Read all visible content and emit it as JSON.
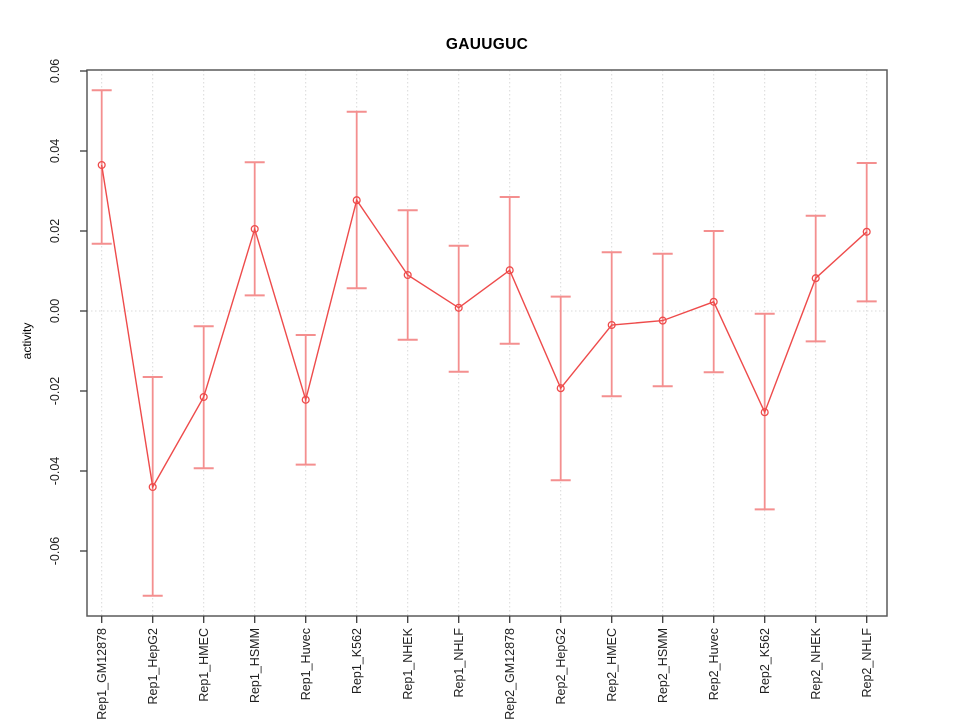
{
  "chart_data": {
    "type": "line",
    "title": "GAUUGUC",
    "xlabel": "",
    "ylabel": "activity",
    "ylim": [
      -0.075,
      0.062
    ],
    "grid": "vertical dotted gridlines at each category; dotted horizontal line at 0",
    "legend_position": "none",
    "categories": [
      "Rep1_GM12878",
      "Rep1_HepG2",
      "Rep1_HMEC",
      "Rep1_HSMM",
      "Rep1_Huvec",
      "Rep1_K562",
      "Rep1_NHEK",
      "Rep1_NHLF",
      "Rep2_GM12878",
      "Rep2_HepG2",
      "Rep2_HMEC",
      "Rep2_HSMM",
      "Rep2_Huvec",
      "Rep2_K562",
      "Rep2_NHEK",
      "Rep2_NHLF"
    ],
    "yticks": [
      0.06,
      0.04,
      0.02,
      0.0,
      -0.02,
      -0.04,
      -0.06
    ],
    "ytick_labels": [
      "0.06",
      "0.04",
      "0.02",
      "0.00",
      "-0.02",
      "-0.04",
      "-0.06"
    ],
    "series": [
      {
        "name": "activity",
        "marker": "open-circle",
        "values": [
          0.0365,
          -0.044,
          -0.0215,
          0.0205,
          -0.0222,
          0.0277,
          0.009,
          0.0008,
          0.0102,
          -0.0193,
          -0.0035,
          -0.0024,
          0.0023,
          -0.0253,
          0.0082,
          0.0198
        ],
        "error_upper": [
          0.0552,
          -0.0165,
          -0.0038,
          0.0372,
          -0.006,
          0.0498,
          0.0252,
          0.0163,
          0.0285,
          0.0036,
          0.0147,
          0.0143,
          0.02,
          -0.0007,
          0.0238,
          0.037
        ],
        "error_lower": [
          0.0168,
          -0.0712,
          -0.0393,
          0.0039,
          -0.0384,
          0.0057,
          -0.0072,
          -0.0152,
          -0.0082,
          -0.0423,
          -0.0213,
          -0.0188,
          -0.0153,
          -0.0496,
          -0.0076,
          0.0024
        ]
      }
    ],
    "colors": {
      "series_line": "#ee4b4b",
      "marker_stroke": "#ee4b4b",
      "error_bar": "#f48f8f",
      "gridline": "#d9d9d9",
      "zero_line": "#d9d9d9",
      "axis_box": "#5a5a5a",
      "tick": "#3a3a3a",
      "tick_label": "#1f1f1f",
      "background": "#ffffff"
    }
  }
}
